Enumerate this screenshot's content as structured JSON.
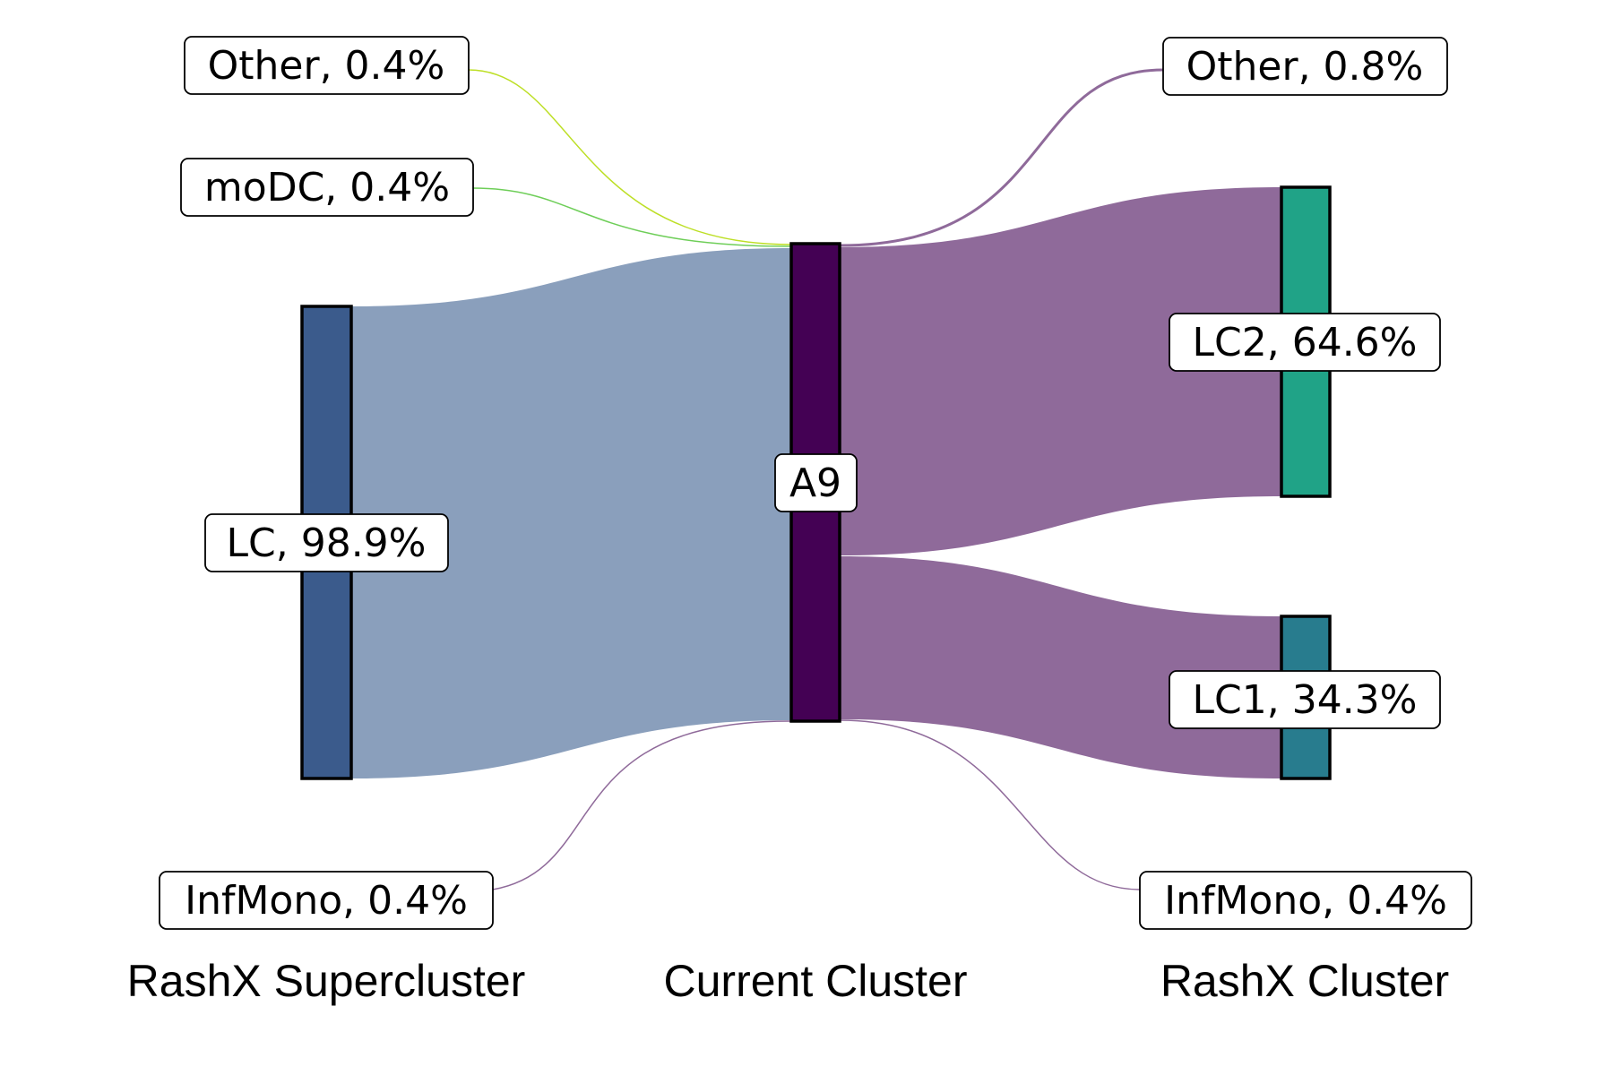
{
  "columns": {
    "left": "RashX Supercluster",
    "center": "Current Cluster",
    "right": "RashX Cluster"
  },
  "center_node": {
    "label": "A9",
    "color": "#440154"
  },
  "left_nodes": [
    {
      "key": "other",
      "label": "Other, 0.4%",
      "percent": 0.4,
      "color": "#bddf26"
    },
    {
      "key": "modc",
      "label": "moDC, 0.4%",
      "percent": 0.4,
      "color": "#6ece58"
    },
    {
      "key": "lc",
      "label": "LC, 98.9%",
      "percent": 98.9,
      "color": "#3b5b8c",
      "link_color": "#8a9fbc"
    },
    {
      "key": "infmono",
      "label": "InfMono, 0.4%",
      "percent": 0.4,
      "color": "#8f6a9a"
    }
  ],
  "right_nodes": [
    {
      "key": "other",
      "label": "Other, 0.8%",
      "percent": 0.8,
      "color": "#8f6a9a"
    },
    {
      "key": "lc2",
      "label": "LC2, 64.6%",
      "percent": 64.6,
      "color": "#20a387"
    },
    {
      "key": "lc1",
      "label": "LC1, 34.3%",
      "percent": 34.3,
      "color": "#287c8e"
    },
    {
      "key": "infmono",
      "label": "InfMono, 0.4%",
      "percent": 0.4,
      "color": "#8f6a9a"
    }
  ],
  "outflow_link_color": "#8f6a9a"
}
